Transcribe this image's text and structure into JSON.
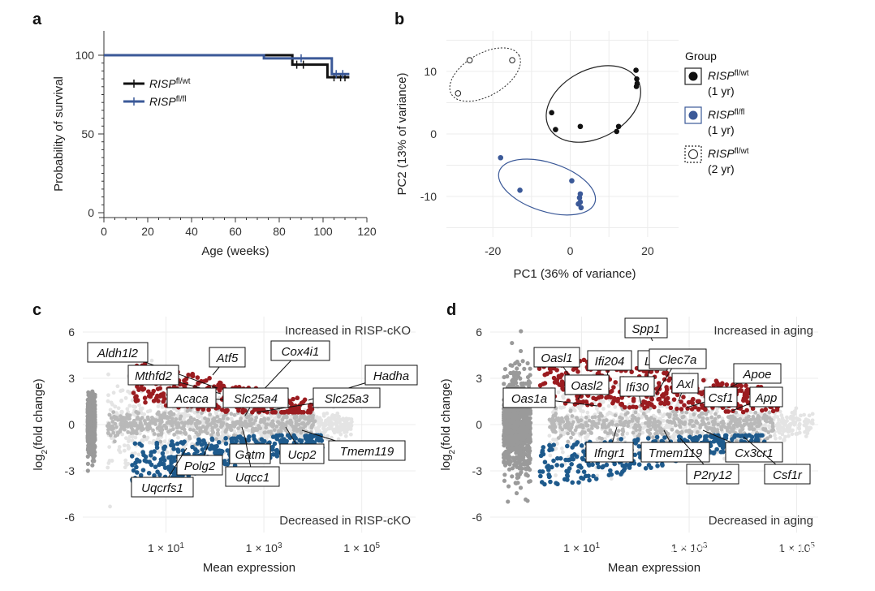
{
  "panels": {
    "a": "a",
    "b": "b",
    "c": "c",
    "d": "d"
  },
  "watermark": "知乎 @逻辑神经科学",
  "chart_data": [
    {
      "panel": "a",
      "type": "line",
      "xlabel": "Age (weeks)",
      "ylabel": "Probability of survival",
      "xlim": [
        0,
        120
      ],
      "ylim": [
        0,
        100
      ],
      "xticks": [
        0,
        20,
        40,
        60,
        80,
        100,
        120
      ],
      "yticks": [
        0,
        50,
        100
      ],
      "series": [
        {
          "name": "RISP",
          "sup": "fl/wt",
          "color": "#111111",
          "x": [
            0,
            86,
            86,
            102,
            102,
            112
          ],
          "y": [
            100,
            100,
            94,
            94,
            86,
            86
          ],
          "censor": [
            [
              88,
              94
            ],
            [
              91,
              94
            ],
            [
              105,
              86
            ],
            [
              108,
              86
            ],
            [
              110,
              86
            ]
          ]
        },
        {
          "name": "RISP",
          "sup": "fl/fl",
          "color": "#3b5998",
          "x": [
            0,
            73,
            73,
            104,
            104,
            112
          ],
          "y": [
            100,
            100,
            98,
            98,
            88,
            88
          ],
          "censor": [
            [
              90,
              98
            ],
            [
              106,
              88
            ],
            [
              109,
              88
            ]
          ]
        }
      ]
    },
    {
      "panel": "b",
      "type": "scatter",
      "xlabel": "PC1 (36% of variance)",
      "ylabel": "PC2 (13% of variance)",
      "xlim": [
        -32,
        28
      ],
      "ylim": [
        -16.5,
        16.5
      ],
      "xticks": [
        -20,
        -10,
        0,
        10,
        20
      ],
      "xtick_labels": [
        "-20",
        "",
        "0",
        "",
        "20"
      ],
      "yticks": [
        -10,
        0,
        10
      ],
      "legend_title": "Group",
      "legend_position": "right",
      "series": [
        {
          "name": "RISP",
          "sup": "fl/wt",
          "sub": "(1 yr)",
          "style": "filled-black",
          "points": [
            [
              17,
              10.2
            ],
            [
              17.2,
              8.8
            ],
            [
              17.3,
              8.1
            ],
            [
              17.1,
              7.6
            ],
            [
              -4.8,
              3.4
            ],
            [
              -3.8,
              0.7
            ],
            [
              2.6,
              1.2
            ],
            [
              12.5,
              1.2
            ],
            [
              12,
              0.4
            ]
          ]
        },
        {
          "name": "RISP",
          "sup": "fl/fl",
          "sub": "(1 yr)",
          "style": "filled-blue",
          "points": [
            [
              -18,
              -3.8
            ],
            [
              -13,
              -9
            ],
            [
              0.4,
              -7.5
            ],
            [
              2.6,
              -9.6
            ],
            [
              2.4,
              -10.2
            ],
            [
              2.6,
              -10.9
            ],
            [
              2.1,
              -11.2
            ],
            [
              2.8,
              -11.8
            ]
          ]
        },
        {
          "name": "RISP",
          "sup": "fl/wt",
          "sub": "(2 yr)",
          "style": "open-dotted",
          "points": [
            [
              -26,
              11.8
            ],
            [
              -15,
              11.8
            ],
            [
              -29,
              6.5
            ]
          ]
        }
      ]
    },
    {
      "panel": "c",
      "type": "scatter",
      "xlabel": "Mean expression",
      "ylabel": "log2(fold change)",
      "xlim_log10": [
        -0.7,
        6.1
      ],
      "ylim": [
        -7.0,
        7.0
      ],
      "xtick_log10": [
        1,
        3,
        5
      ],
      "xtick_labels": [
        "1 × 10",
        "1 × 10",
        "1 × 10"
      ],
      "xtick_sup": [
        "1",
        "3",
        "5"
      ],
      "yticks": [
        -6,
        -3,
        0,
        3,
        6
      ],
      "corner_labels": {
        "top": "Increased in RISP-cKO",
        "bottom": "Decreased in RISP-cKO"
      },
      "labels": [
        "Aldh1l2",
        "Mthfd2",
        "Atf5",
        "Cox4i1",
        "Hadha",
        "Acaca",
        "Slc25a4",
        "Slc25a3",
        "Gatm",
        "Ucp2",
        "Tmem119",
        "Polg2",
        "Uqcc1",
        "Uqcrfs1"
      ]
    },
    {
      "panel": "d",
      "type": "scatter",
      "xlabel": "Mean expression",
      "ylabel": "log2(fold change)",
      "xlim_log10": [
        -0.7,
        5.4
      ],
      "ylim": [
        -7.0,
        7.0
      ],
      "xtick_log10": [
        1,
        3,
        5
      ],
      "xtick_labels": [
        "1 × 10",
        "1 × 10",
        "1 × 10"
      ],
      "xtick_sup": [
        "1",
        "3",
        "5"
      ],
      "yticks": [
        -6,
        -3,
        0,
        3,
        6
      ],
      "corner_labels": {
        "top": "Increased in aging",
        "bottom": "Decreased in aging"
      },
      "labels": [
        "Spp1",
        "Oasl1",
        "Ifi204",
        "Lpl",
        "Clec7a",
        "Oasl2",
        "Ifi30",
        "Axl",
        "Apoe",
        "Oas1a",
        "Csf1",
        "App",
        "Ifngr1",
        "Tmem119",
        "Cx3cr1",
        "P2ry12",
        "Csf1r"
      ]
    }
  ]
}
